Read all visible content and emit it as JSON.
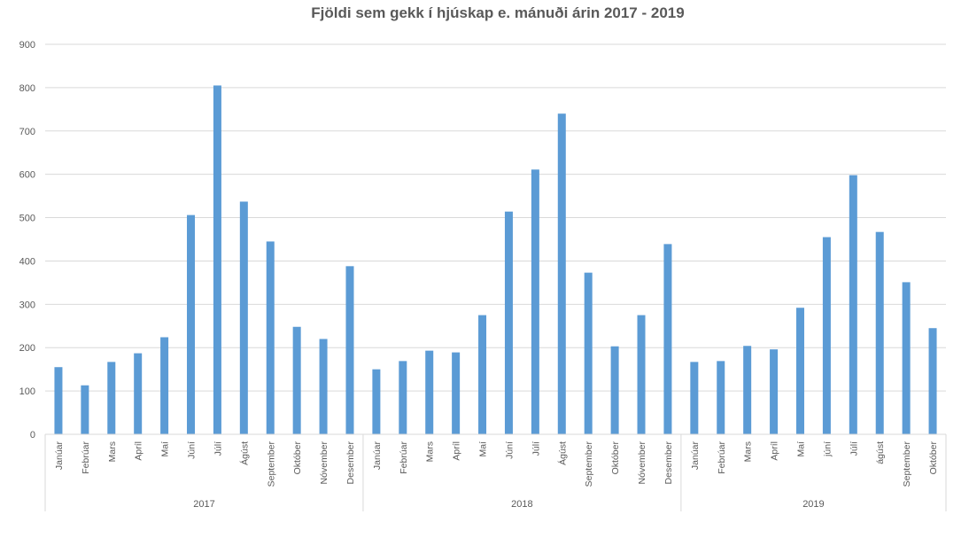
{
  "chart_data": {
    "type": "bar",
    "title": "Fjöldi sem gekk í hjúskap e. mánuði árin 2017 - 2019",
    "xlabel": "",
    "ylabel": "",
    "ylim": [
      0,
      900
    ],
    "yticks": [
      0,
      100,
      200,
      300,
      400,
      500,
      600,
      700,
      800,
      900
    ],
    "grid": true,
    "legend": "none",
    "bar_color": "#5b9bd5",
    "groups": [
      {
        "label": "2017",
        "categories": [
          "Janúar",
          "Febrúar",
          "Mars",
          "Apríl",
          "Maí",
          "Júní",
          "Júlí",
          "Ágúst",
          "September",
          "Október",
          "Nóvember",
          "Desember"
        ],
        "values": [
          155,
          113,
          167,
          187,
          224,
          506,
          805,
          537,
          445,
          248,
          220,
          388
        ]
      },
      {
        "label": "2018",
        "categories": [
          "Janúar",
          "Febrúar",
          "Mars",
          "Apríl",
          "Maí",
          "Júní",
          "Júlí",
          "Ágúst",
          "September",
          "Október",
          "Nóvember",
          "Desember"
        ],
        "values": [
          150,
          169,
          193,
          189,
          275,
          514,
          611,
          740,
          373,
          203,
          275,
          439
        ]
      },
      {
        "label": "2019",
        "categories": [
          "Janúar",
          "Febrúar",
          "Mars",
          "Apríl",
          "Maí",
          "júní",
          "Júlí",
          "ágúst",
          "September",
          "Október"
        ],
        "values": [
          167,
          169,
          204,
          196,
          292,
          455,
          598,
          467,
          351,
          245
        ]
      }
    ]
  }
}
